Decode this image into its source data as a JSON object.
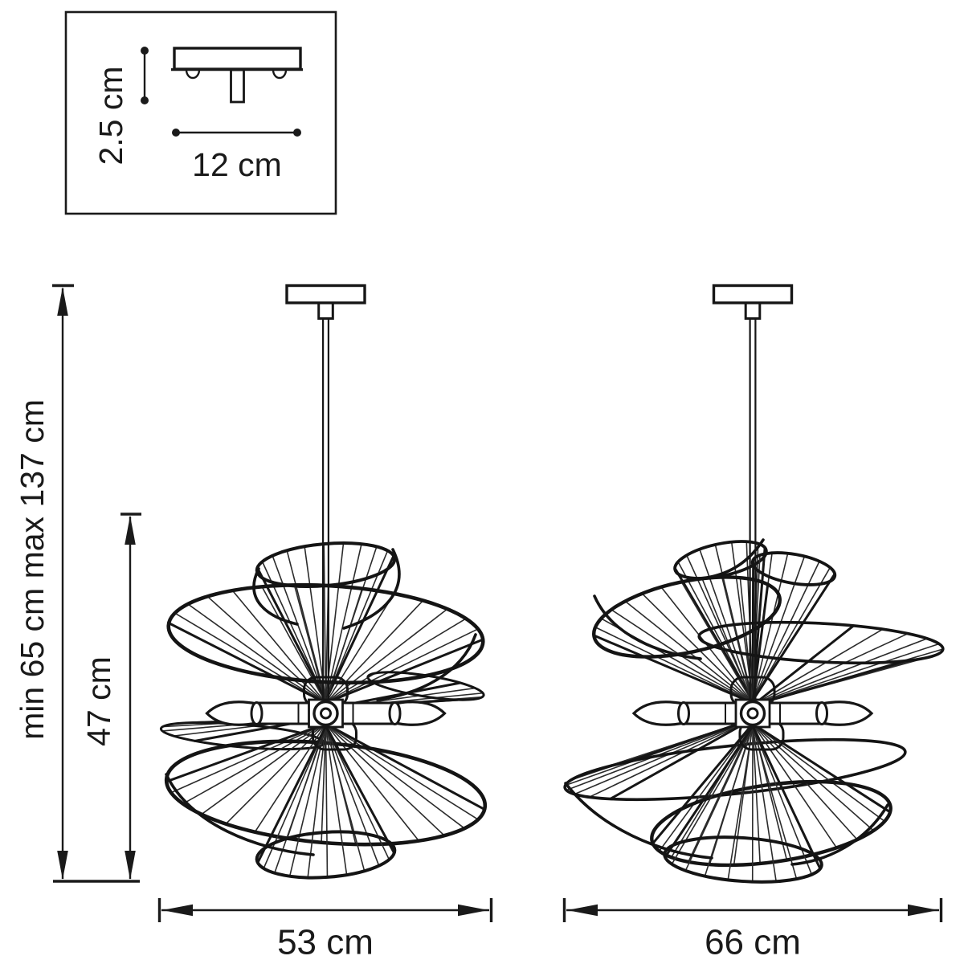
{
  "inset": {
    "height_label": "2.5 cm",
    "width_label": "12 cm"
  },
  "vertical_dimensions": {
    "overall_height_label": "min 65 cm max 137 cm",
    "fixture_height_label": "47 cm"
  },
  "horizontal_dimensions": {
    "left_fixture_width_label": "53 cm",
    "right_fixture_width_label": "66 cm"
  },
  "colors": {
    "line": "#1a1a1a",
    "background": "#ffffff"
  }
}
